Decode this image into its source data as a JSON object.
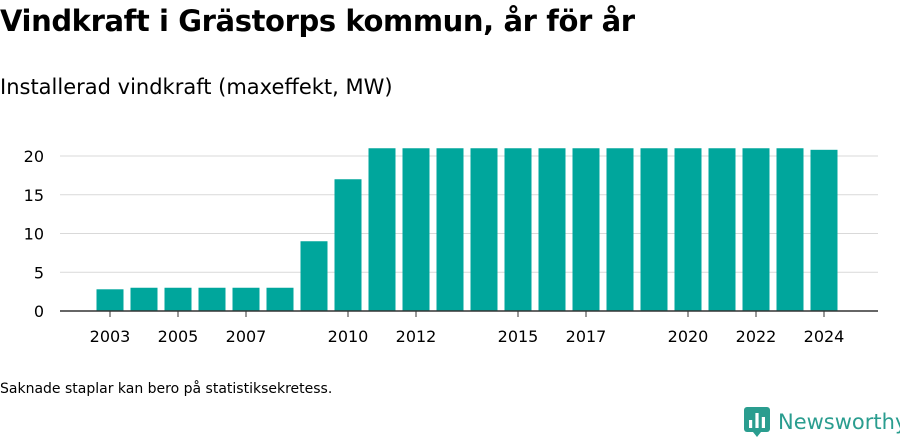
{
  "title": "Vindkraft i Grästorps kommun, år för år",
  "subtitle": "Installerad vindkraft (maxeffekt, MW)",
  "footnote": "Saknade staplar kan bero på statistiksekretess.",
  "brand": {
    "name": "Newsworthy",
    "icon": "newsworthy-logo-icon",
    "color": "#2a9d8f"
  },
  "colors": {
    "bar": "#00a69c",
    "grid": "#d9d9d9",
    "axis": "#333333"
  },
  "chart_data": {
    "type": "bar",
    "categories": [
      "2003",
      "2004",
      "2005",
      "2006",
      "2007",
      "2008",
      "2009",
      "2010",
      "2011",
      "2012",
      "2013",
      "2014",
      "2015",
      "2016",
      "2017",
      "2018",
      "2019",
      "2020",
      "2021",
      "2022",
      "2023",
      "2024"
    ],
    "values": [
      2.8,
      3,
      3,
      3,
      3,
      3,
      9,
      17,
      21,
      21,
      21,
      21,
      21,
      21,
      21,
      21,
      21,
      21,
      21,
      21,
      21,
      20.8
    ],
    "x_tick_labels": [
      "2003",
      "2005",
      "2007",
      "2010",
      "2012",
      "2015",
      "2017",
      "2020",
      "2022",
      "2024"
    ],
    "y_ticks": [
      0,
      5,
      10,
      15,
      20
    ],
    "ylim": [
      0,
      21
    ],
    "xlabel": "",
    "ylabel": "",
    "grid": true,
    "legend": "none"
  }
}
